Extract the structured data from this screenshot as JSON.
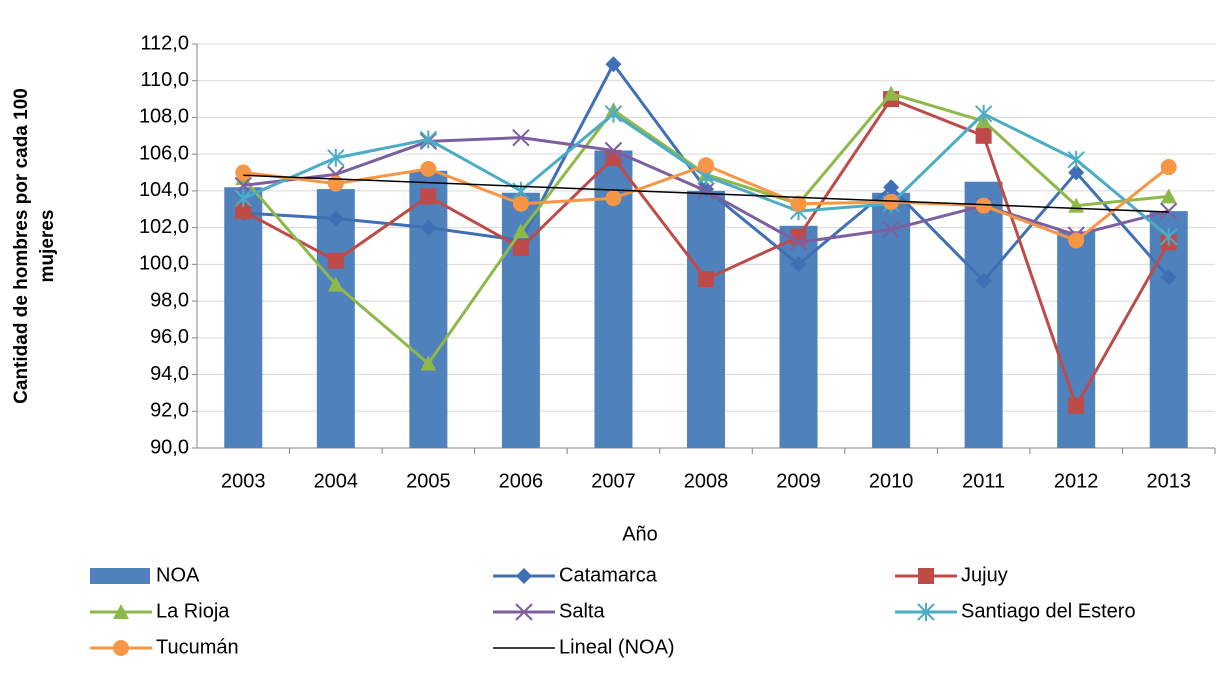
{
  "chart_data": {
    "type": "bar",
    "y_label": [
      "Cantidad de hombres por cada 100",
      "mujeres"
    ],
    "x_label": "Año",
    "categories": [
      "2003",
      "2004",
      "2005",
      "2006",
      "2007",
      "2008",
      "2009",
      "2010",
      "2011",
      "2012",
      "2013"
    ],
    "ylim": [
      90,
      112
    ],
    "yticks": [
      {
        "value": 90,
        "label": "90,0"
      },
      {
        "value": 92,
        "label": "92,0"
      },
      {
        "value": 94,
        "label": "94,0"
      },
      {
        "value": 96,
        "label": "96,0"
      },
      {
        "value": 98,
        "label": "98,0"
      },
      {
        "value": 100,
        "label": "100,0"
      },
      {
        "value": 102,
        "label": "102,0"
      },
      {
        "value": 104,
        "label": "104,0"
      },
      {
        "value": 106,
        "label": "106,0"
      },
      {
        "value": 108,
        "label": "108,0"
      },
      {
        "value": 110,
        "label": "110,0"
      },
      {
        "value": 112,
        "label": "112,0"
      }
    ],
    "grid": true,
    "legend": "bottom",
    "series": [
      {
        "name": "NOA",
        "type": "bar",
        "color": "#4f81bd",
        "values": [
          104.2,
          104.1,
          105.1,
          103.9,
          106.2,
          104.0,
          102.1,
          103.9,
          104.5,
          101.8,
          102.9
        ]
      },
      {
        "name": "Catamarca",
        "type": "line",
        "marker": "diamond",
        "color": "#3f6fb4",
        "values": [
          102.8,
          102.5,
          102.0,
          101.3,
          110.9,
          104.1,
          100.0,
          104.2,
          99.1,
          105.0,
          99.3
        ]
      },
      {
        "name": "Jujuy",
        "type": "line",
        "marker": "square",
        "color": "#be4b48",
        "values": [
          102.9,
          100.2,
          103.7,
          100.9,
          105.8,
          99.2,
          101.5,
          109.0,
          107.0,
          92.3,
          101.2
        ]
      },
      {
        "name": "La Rioja",
        "type": "line",
        "marker": "triangle",
        "color": "#8fb84a",
        "values": [
          104.7,
          98.9,
          94.6,
          101.8,
          108.4,
          104.9,
          103.3,
          109.3,
          107.8,
          103.2,
          103.7
        ]
      },
      {
        "name": "Salta",
        "type": "line",
        "marker": "x",
        "color": "#7d5fa0",
        "values": [
          104.3,
          104.9,
          106.7,
          106.9,
          106.2,
          104.0,
          101.2,
          101.9,
          103.2,
          101.6,
          102.9
        ]
      },
      {
        "name": "Santiago del Estero",
        "type": "line",
        "marker": "star",
        "color": "#4bacc6",
        "values": [
          103.6,
          105.8,
          106.8,
          104.0,
          108.2,
          104.8,
          102.9,
          103.3,
          108.2,
          105.7,
          101.5
        ]
      },
      {
        "name": "Tucumán",
        "type": "line",
        "marker": "circle",
        "color": "#f79646",
        "values": [
          105.0,
          104.4,
          105.2,
          103.3,
          103.6,
          105.4,
          103.3,
          103.4,
          103.2,
          101.3,
          105.3
        ]
      },
      {
        "name": "Lineal (NOA)",
        "type": "line",
        "marker": "none",
        "color": "#000000",
        "values": [
          104.85,
          104.65,
          104.45,
          104.25,
          104.05,
          103.85,
          103.65,
          103.45,
          103.25,
          103.05,
          102.85
        ]
      }
    ]
  }
}
